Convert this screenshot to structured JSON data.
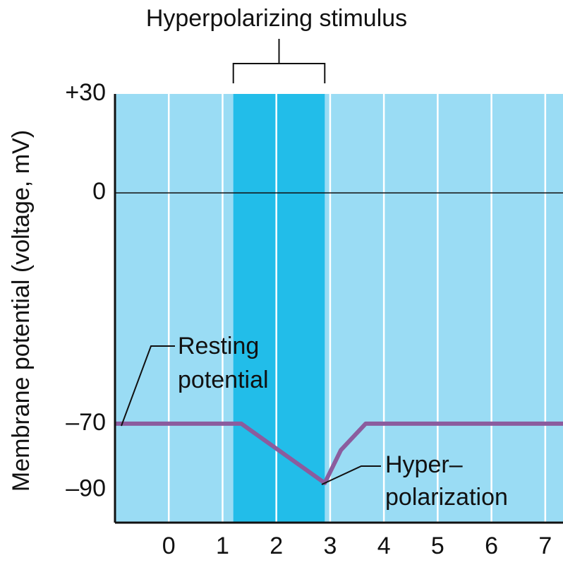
{
  "chart_data": {
    "type": "line",
    "title": "Hyperpolarizing stimulus",
    "ylabel": "Membrane potential (voltage, mV)",
    "xlim": [
      -1,
      7.33
    ],
    "ylim": [
      -100,
      30
    ],
    "xticks": [
      0,
      1,
      2,
      3,
      4,
      5,
      6,
      7
    ],
    "yticks": [
      {
        "value": 30,
        "label": "+30"
      },
      0,
      {
        "value": -70,
        "label": "–70"
      },
      {
        "value": -90,
        "label": "–90"
      }
    ],
    "grid": true,
    "background": "#9adcf4",
    "zero_line": true,
    "stimulus": {
      "start": 1.2,
      "end": 2.9,
      "color": "#22bde9"
    },
    "series": [
      {
        "color": "#8b5c9e",
        "x": [
          -1,
          1.35,
          2.9,
          3.2,
          3.66,
          7.33
        ],
        "values": [
          -70,
          -70,
          -88,
          -78,
          -70,
          -70
        ]
      }
    ],
    "annotations": [
      {
        "lines": [
          "Resting",
          "potential"
        ]
      },
      {
        "lines": [
          "Hyper–",
          "polarization"
        ]
      }
    ]
  }
}
